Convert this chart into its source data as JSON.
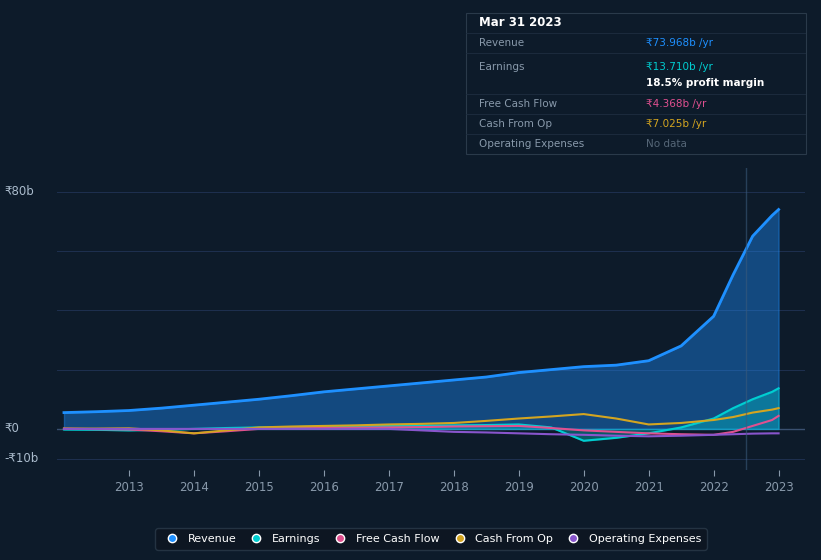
{
  "background_color": "#0d1b2a",
  "plot_bg_color": "#0d1b2a",
  "grid_color": "#1e3050",
  "years": [
    2012.0,
    2012.5,
    2013.0,
    2013.5,
    2014.0,
    2014.5,
    2015.0,
    2015.5,
    2016.0,
    2016.5,
    2017.0,
    2017.5,
    2018.0,
    2018.5,
    2019.0,
    2019.5,
    2020.0,
    2020.5,
    2021.0,
    2021.5,
    2022.0,
    2022.3,
    2022.6,
    2022.9,
    2023.0
  ],
  "revenue": [
    5.5,
    5.8,
    6.2,
    7.0,
    8.0,
    9.0,
    10.0,
    11.2,
    12.5,
    13.5,
    14.5,
    15.5,
    16.5,
    17.5,
    19.0,
    20.0,
    21.0,
    21.5,
    23.0,
    28.0,
    38.0,
    52.0,
    65.0,
    72.0,
    74.0
  ],
  "earnings": [
    -0.2,
    -0.3,
    -0.5,
    -0.3,
    0.0,
    0.3,
    0.5,
    0.6,
    0.8,
    0.9,
    1.0,
    1.1,
    1.2,
    1.3,
    1.5,
    0.5,
    -4.0,
    -3.0,
    -1.5,
    0.5,
    3.5,
    7.0,
    10.0,
    12.5,
    13.7
  ],
  "free_cash_flow": [
    0.1,
    -0.1,
    -0.2,
    -0.8,
    -1.5,
    -0.8,
    0.0,
    0.2,
    0.3,
    0.4,
    0.5,
    0.6,
    0.8,
    0.9,
    1.0,
    0.3,
    -0.5,
    -1.0,
    -1.5,
    -1.8,
    -2.0,
    -1.0,
    1.0,
    3.0,
    4.4
  ],
  "cash_from_op": [
    0.1,
    0.1,
    0.2,
    -0.5,
    -1.5,
    -0.5,
    0.5,
    0.8,
    1.0,
    1.2,
    1.5,
    1.7,
    2.0,
    2.7,
    3.5,
    4.2,
    5.0,
    3.5,
    1.5,
    2.0,
    3.0,
    4.0,
    5.5,
    6.5,
    7.0
  ],
  "op_expenses": [
    0.0,
    0.0,
    0.0,
    0.0,
    0.0,
    0.0,
    0.0,
    0.0,
    0.0,
    0.0,
    0.0,
    -0.5,
    -1.0,
    -1.2,
    -1.5,
    -1.8,
    -2.0,
    -2.3,
    -2.5,
    -2.3,
    -2.0,
    -1.8,
    -1.6,
    -1.5,
    -1.5
  ],
  "revenue_color": "#1e90ff",
  "earnings_color": "#00ced1",
  "free_cash_flow_color": "#e05090",
  "cash_from_op_color": "#d4a520",
  "op_expenses_color": "#8855cc",
  "revenue_fill_alpha": 0.4,
  "earnings_fill_alpha": 0.35,
  "ylim": [
    -14,
    88
  ],
  "ytick_vals": [
    -10,
    0,
    80
  ],
  "ytick_labels": [
    "-₹10b",
    "₹0",
    "₹80b"
  ],
  "xlim_left": 2011.9,
  "xlim_right": 2023.4,
  "xtick_positions": [
    2013,
    2014,
    2015,
    2016,
    2017,
    2018,
    2019,
    2020,
    2021,
    2022,
    2023
  ],
  "xtick_labels": [
    "2013",
    "2014",
    "2015",
    "2016",
    "2017",
    "2018",
    "2019",
    "2020",
    "2021",
    "2022",
    "2023"
  ],
  "highlight_x": 2022.5,
  "info_title": "Mar 31 2023",
  "info_revenue_label": "Revenue",
  "info_revenue_value": "₹73.968b",
  "info_earnings_label": "Earnings",
  "info_earnings_value": "₹13.710b",
  "info_margin_value": "18.5%",
  "info_fcf_label": "Free Cash Flow",
  "info_fcf_value": "₹4.368b",
  "info_cashop_label": "Cash From Op",
  "info_cashop_value": "₹7.025b",
  "info_opex_label": "Operating Expenses",
  "info_opex_value": "No data",
  "legend_labels": [
    "Revenue",
    "Earnings",
    "Free Cash Flow",
    "Cash From Op",
    "Operating Expenses"
  ],
  "legend_colors": [
    "#1e90ff",
    "#00ced1",
    "#e05090",
    "#d4a520",
    "#8855cc"
  ]
}
